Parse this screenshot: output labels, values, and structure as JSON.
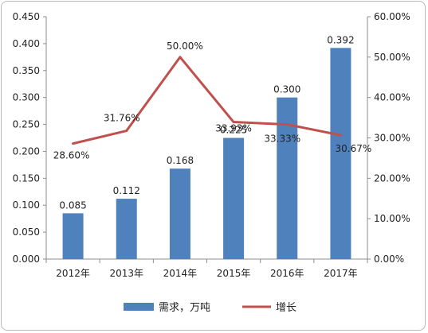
{
  "chart_data": {
    "type": "bar",
    "categories": [
      "2012年",
      "2013年",
      "2014年",
      "2015年",
      "2016年",
      "2017年"
    ],
    "series": [
      {
        "name": "需求，万吨",
        "type": "bar",
        "axis": "left",
        "values": [
          0.085,
          0.112,
          0.168,
          0.225,
          0.3,
          0.392
        ],
        "labels": [
          "0.085",
          "0.112",
          "0.168",
          "0.225",
          "0.300",
          "0.392"
        ],
        "color": "#4f81bd"
      },
      {
        "name": "增长",
        "type": "line",
        "axis": "right",
        "values": [
          28.6,
          31.76,
          50.0,
          33.93,
          33.33,
          30.67
        ],
        "labels": [
          "28.60%",
          "31.76%",
          "50.00%",
          "33.93%",
          "33.33%",
          "30.67%"
        ],
        "color": "#c0504d"
      }
    ],
    "y_left": {
      "ylim": [
        0,
        0.45
      ],
      "ticks": [
        "0.000",
        "0.050",
        "0.100",
        "0.150",
        "0.200",
        "0.250",
        "0.300",
        "0.350",
        "0.400",
        "0.450"
      ]
    },
    "y_right": {
      "ylim": [
        0,
        60
      ],
      "ticks": [
        "0.00%",
        "10.00%",
        "20.00%",
        "30.00%",
        "40.00%",
        "50.00%",
        "60.00%"
      ]
    },
    "grid": false,
    "legend_position": "bottom"
  }
}
